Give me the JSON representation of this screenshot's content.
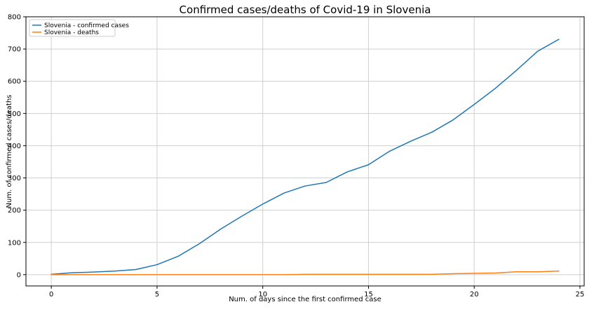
{
  "chart_data": {
    "type": "line",
    "title": "Confirmed cases/deaths of Covid-19 in Slovenia",
    "xlabel": "Num. of days since the first confirmed case",
    "ylabel": "Num. of confirmed cases/deaths",
    "xlim": [
      -1.2,
      25.2
    ],
    "ylim": [
      -35,
      800
    ],
    "xticks": [
      0,
      5,
      10,
      15,
      20,
      25
    ],
    "yticks": [
      0,
      100,
      200,
      300,
      400,
      500,
      600,
      700,
      800
    ],
    "grid": true,
    "legend": "top-left",
    "x": [
      0,
      1,
      2,
      3,
      4,
      5,
      6,
      7,
      8,
      9,
      10,
      11,
      12,
      13,
      14,
      15,
      16,
      17,
      18,
      19,
      20,
      21,
      22,
      23,
      24
    ],
    "series": [
      {
        "name": "Slovenia - confirmed cases",
        "color": "#1f77b4",
        "values": [
          1,
          6,
          8,
          11,
          16,
          31,
          57,
          96,
          141,
          181,
          219,
          253,
          275,
          286,
          319,
          341,
          383,
          414,
          442,
          480,
          528,
          578,
          634,
          693,
          730
        ]
      },
      {
        "name": "Slovenia - deaths",
        "color": "#ff7f0e",
        "values": [
          0,
          0,
          0,
          0,
          0,
          0,
          0,
          0,
          0,
          0,
          0,
          0,
          1,
          1,
          1,
          1,
          1,
          1,
          1,
          3,
          4,
          5,
          9,
          9,
          11
        ]
      }
    ]
  }
}
